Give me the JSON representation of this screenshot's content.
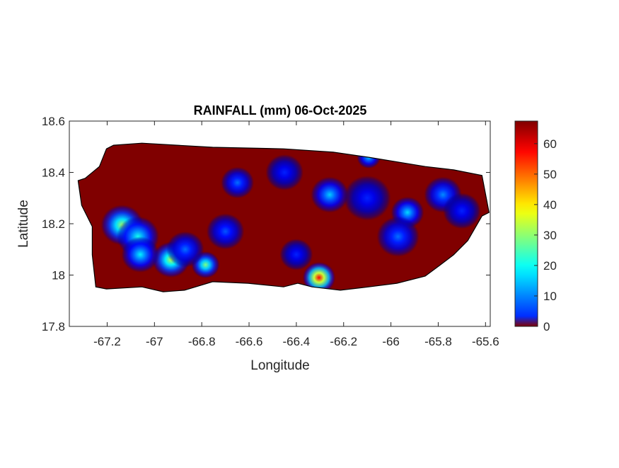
{
  "chart_data": {
    "type": "heatmap",
    "title": "RAINFALL (mm) 06-Oct-2025",
    "xlabel": "Longitude",
    "ylabel": "Latitude",
    "xlim": [
      -67.36,
      -65.58
    ],
    "ylim": [
      17.8,
      18.6
    ],
    "xticks": [
      -67.2,
      -67,
      -66.8,
      -66.6,
      -66.4,
      -66.2,
      -66,
      -65.8,
      -65.6
    ],
    "xtick_labels": [
      "-67.2",
      "-67",
      "-66.8",
      "-66.6",
      "-66.4",
      "-66.2",
      "-66",
      "-65.8",
      "-65.6"
    ],
    "yticks": [
      18.6,
      18.4,
      18.2,
      18,
      17.8
    ],
    "ytick_labels": [
      "18.6",
      "18.4",
      "18.2",
      "18",
      "17.8"
    ],
    "colorbar": {
      "colormap": "jet",
      "clim": [
        0,
        67.4
      ],
      "ticks": [
        0,
        10,
        20,
        30,
        40,
        50,
        60
      ],
      "tick_labels": [
        "0",
        "10",
        "20",
        "30",
        "40",
        "50",
        "60"
      ]
    },
    "background_value_mm": 0,
    "island_outline_lonlat": [
      [
        -67.323,
        18.368
      ],
      [
        -67.293,
        18.377
      ],
      [
        -67.233,
        18.423
      ],
      [
        -67.203,
        18.492
      ],
      [
        -67.173,
        18.506
      ],
      [
        -67.053,
        18.514
      ],
      [
        -66.754,
        18.498
      ],
      [
        -66.454,
        18.492
      ],
      [
        -66.244,
        18.479
      ],
      [
        -66.094,
        18.459
      ],
      [
        -65.855,
        18.423
      ],
      [
        -65.735,
        18.41
      ],
      [
        -65.615,
        18.388
      ],
      [
        -65.585,
        18.244
      ],
      [
        -65.615,
        18.23
      ],
      [
        -65.675,
        18.134
      ],
      [
        -65.735,
        18.079
      ],
      [
        -65.795,
        18.037
      ],
      [
        -65.855,
        17.996
      ],
      [
        -65.975,
        17.968
      ],
      [
        -66.094,
        17.954
      ],
      [
        -66.214,
        17.941
      ],
      [
        -66.334,
        17.954
      ],
      [
        -66.394,
        17.968
      ],
      [
        -66.454,
        17.954
      ],
      [
        -66.604,
        17.968
      ],
      [
        -66.754,
        17.974
      ],
      [
        -66.873,
        17.941
      ],
      [
        -66.963,
        17.935
      ],
      [
        -67.053,
        17.954
      ],
      [
        -67.203,
        17.946
      ],
      [
        -67.248,
        17.954
      ],
      [
        -67.263,
        18.079
      ],
      [
        -67.263,
        18.189
      ],
      [
        -67.308,
        18.272
      ]
    ],
    "rainfall_hotspots": [
      {
        "lon": -67.137,
        "lat": 18.195,
        "value": 40,
        "radius_deg": 0.09
      },
      {
        "lon": -67.07,
        "lat": 18.15,
        "value": 30,
        "radius_deg": 0.09
      },
      {
        "lon": -66.93,
        "lat": 18.06,
        "value": 42,
        "radius_deg": 0.08
      },
      {
        "lon": -67.06,
        "lat": 18.08,
        "value": 28,
        "radius_deg": 0.08
      },
      {
        "lon": -66.784,
        "lat": 18.04,
        "value": 38,
        "radius_deg": 0.06
      },
      {
        "lon": -66.87,
        "lat": 18.1,
        "value": 18,
        "radius_deg": 0.08
      },
      {
        "lon": -66.7,
        "lat": 18.17,
        "value": 16,
        "radius_deg": 0.08
      },
      {
        "lon": -66.304,
        "lat": 17.99,
        "value": 67,
        "radius_deg": 0.07
      },
      {
        "lon": -66.259,
        "lat": 18.313,
        "value": 25,
        "radius_deg": 0.08
      },
      {
        "lon": -65.93,
        "lat": 18.244,
        "value": 26,
        "radius_deg": 0.07
      },
      {
        "lon": -65.97,
        "lat": 18.15,
        "value": 18,
        "radius_deg": 0.09
      },
      {
        "lon": -65.78,
        "lat": 18.313,
        "value": 20,
        "radius_deg": 0.08
      },
      {
        "lon": -66.649,
        "lat": 18.36,
        "value": 18,
        "radius_deg": 0.07
      },
      {
        "lon": -66.094,
        "lat": 18.459,
        "value": 25,
        "radius_deg": 0.05
      },
      {
        "lon": -66.45,
        "lat": 18.4,
        "value": 12,
        "radius_deg": 0.08
      },
      {
        "lon": -66.1,
        "lat": 18.3,
        "value": 12,
        "radius_deg": 0.1
      },
      {
        "lon": -66.4,
        "lat": 18.08,
        "value": 12,
        "radius_deg": 0.07
      },
      {
        "lon": -65.7,
        "lat": 18.25,
        "value": 12,
        "radius_deg": 0.08
      }
    ]
  }
}
